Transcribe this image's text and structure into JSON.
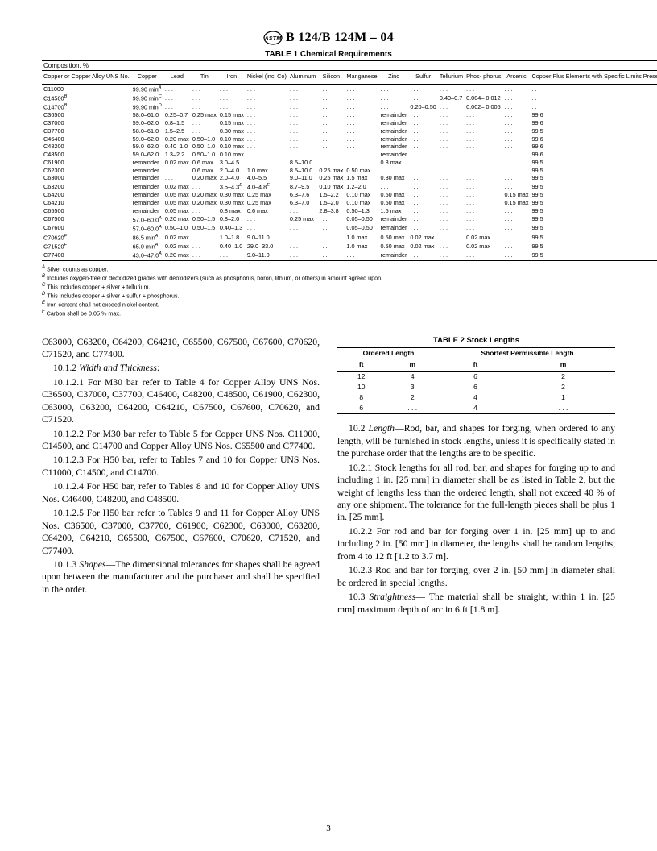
{
  "header": {
    "designation": "B 124/B 124M – 04"
  },
  "table1": {
    "title": "TABLE 1  Chemical Requirements",
    "composition_label": "Composition, %",
    "columns": [
      "Copper or Copper Alloy UNS No.",
      "Copper",
      "Lead",
      "Tin",
      "Iron",
      "Nickel (incl Co)",
      "Aluminum",
      "Silicon",
      "Manganese",
      "Zinc",
      "Sulfur",
      "Tellurium",
      "Phos- phorus",
      "Arsenic",
      "Copper Plus Elements with Specific Limits Present, min"
    ],
    "rows": [
      [
        "C11000",
        "99.90 min^A",
        ". . .",
        ". . .",
        ". . .",
        ". . .",
        ". . .",
        ". . .",
        ". . .",
        ". . .",
        ". . .",
        ". . .",
        ". . .",
        ". . .",
        ". . ."
      ],
      [
        "C14500^B",
        "99.90 min^C",
        ". . .",
        ". . .",
        ". . .",
        ". . .",
        ". . .",
        ". . .",
        ". . .",
        ". . .",
        ". . .",
        "0.40–0.7",
        "0.004– 0.012",
        ". . .",
        ". . ."
      ],
      [
        "C14700^B",
        "99.90 min^D",
        ". . .",
        ". . .",
        ". . .",
        ". . .",
        ". . .",
        ". . .",
        ". . .",
        ". . .",
        "0.20–0.50",
        ". . .",
        "0.002– 0.005",
        ". . .",
        ". . ."
      ],
      [
        "C36500",
        "58.0–61.0",
        "0.25–0.7",
        "0.25 max",
        "0.15 max",
        ". . .",
        ". . .",
        ". . .",
        ". . .",
        "remainder",
        ". . .",
        ". . .",
        ". . .",
        ". . .",
        "99.6"
      ],
      [
        "C37000",
        "59.0–62.0",
        "0.8–1.5",
        ". . .",
        "0.15 max",
        ". . .",
        ". . .",
        ". . .",
        ". . .",
        "remainder",
        ". . .",
        ". . .",
        ". . .",
        ". . .",
        "99.6"
      ],
      [
        "C37700",
        "58.0–61.0",
        "1.5–2.5",
        ". . .",
        "0.30 max",
        ". . .",
        ". . .",
        ". . .",
        ". . .",
        "remainder",
        ". . .",
        ". . .",
        ". . .",
        ". . .",
        "99.5"
      ],
      [
        "C46400",
        "59.0–62.0",
        "0.20 max",
        "0.50–1.0",
        "0.10 max",
        ". . .",
        ". . .",
        ". . .",
        ". . .",
        "remainder",
        ". . .",
        ". . .",
        ". . .",
        ". . .",
        "99.6"
      ],
      [
        "C48200",
        "59.0–62.0",
        "0.40–1.0",
        "0.50–1.0",
        "0.10 max",
        ". . .",
        ". . .",
        ". . .",
        ". . .",
        "remainder",
        ". . .",
        ". . .",
        ". . .",
        ". . .",
        "99.6"
      ],
      [
        "C48500",
        "59.0–62.0",
        "1.3–2.2",
        "0.50–1.0",
        "0.10 max",
        ". . .",
        ". . .",
        ". . .",
        ". . .",
        "remainder",
        ". . .",
        ". . .",
        ". . .",
        ". . .",
        "99.6"
      ],
      [
        "C61900",
        "remainder",
        "0.02 max",
        "0.6 max",
        "3.0–4.5",
        ". . .",
        "8.5–10.0",
        ". . .",
        ". . .",
        "0.8 max",
        ". . .",
        ". . .",
        ". . .",
        ". . .",
        "99.5"
      ],
      [
        "C62300",
        "remainder",
        ". . .",
        "0.6 max",
        "2.0–4.0",
        "1.0 max",
        "8.5–10.0",
        "0.25 max",
        "0.50 max",
        ". . .",
        ". . .",
        ". . .",
        ". . .",
        ". . .",
        "99.5"
      ],
      [
        "C63000",
        "remainder",
        ". . .",
        "0.20 max",
        "2.0–4.0",
        "4.0–5.5",
        "9.0–11.0",
        "0.25 max",
        "1.5 max",
        "0.30 max",
        ". . .",
        ". . .",
        ". . .",
        ". . .",
        "99.5"
      ],
      [
        "C63200",
        "remainder",
        "0.02 max",
        ". . .",
        "3.5–4.3^E",
        "4.0–4.8^E",
        "8.7–9.5",
        "0.10 max",
        "1.2–2.0",
        ". . .",
        ". . .",
        ". . .",
        ". . .",
        ". . .",
        "99.5"
      ],
      [
        "C64200",
        "remainder",
        "0.05 max",
        "0.20 max",
        "0.30 max",
        "0.25 max",
        "6.3–7.6",
        "1.5–2.2",
        "0.10 max",
        "0.50 max",
        ". . .",
        ". . .",
        ". . .",
        "0.15 max",
        "99.5"
      ],
      [
        "C64210",
        "remainder",
        "0.05 max",
        "0.20 max",
        "0.30 max",
        "0.25 max",
        "6.3–7.0",
        "1.5–2.0",
        "0.10 max",
        "0.50 max",
        ". . .",
        ". . .",
        ". . .",
        "0.15 max",
        "99.5"
      ],
      [
        "C65500",
        "remainder",
        "0.05 max",
        ". . .",
        "0.8 max",
        "0.6 max",
        ". . .",
        "2.8–3.8",
        "0.50–1.3",
        "1.5 max",
        ". . .",
        ". . .",
        ". . .",
        ". . .",
        "99.5"
      ],
      [
        "C67500",
        "57.0–60.0^A",
        "0.20 max",
        "0.50–1.5",
        "0.8–2.0",
        ". . .",
        "0.25 max",
        ". . .",
        "0.05–0.50",
        "remainder",
        ". . .",
        ". . .",
        ". . .",
        ". . .",
        "99.5"
      ],
      [
        "C67600",
        "57.0–60.0^A",
        "0.50–1.0",
        "0.50–1.5",
        "0.40–1.3",
        ". . .",
        ". . .",
        ". . .",
        "0.05–0.50",
        "remainder",
        ". . .",
        ". . .",
        ". . .",
        ". . .",
        "99.5"
      ],
      [
        "C70620^F",
        "86.5 min^A",
        "0.02 max",
        ". . .",
        "1.0–1.8",
        "9.0–11.0",
        ". . .",
        ". . .",
        "1.0 max",
        "0.50 max",
        "0.02 max",
        ". . .",
        "0.02 max",
        ". . .",
        "99.5"
      ],
      [
        "C71520^F",
        "65.0 min^A",
        "0.02 max",
        ". . .",
        "0.40–1.0",
        "29.0–33.0",
        ". . .",
        ". . .",
        "1.0 max",
        "0.50 max",
        "0.02 max",
        ". . .",
        "0.02 max",
        ". . .",
        "99.5"
      ],
      [
        "C77400",
        "43.0–47.0^A",
        "0.20 max",
        ". . .",
        ". . .",
        "9.0–11.0",
        ". . .",
        ". . .",
        ". . .",
        "remainder",
        ". . .",
        ". . .",
        ". . .",
        ". . .",
        "99.5"
      ]
    ],
    "footnotes": [
      "^A Silver counts as copper.",
      "^B Includes oxygen-free or deoxidized grades with deoxidizers (such as phosphorus, boron, lithium, or others) in amount agreed upon.",
      "^C This includes copper + silver + tellurium.",
      "^D This includes copper + silver + sulfur + phosphorus.",
      "^E Iron content shall not exceed nickel content.",
      "^F Carbon shall be 0.05 % max."
    ]
  },
  "left_column": {
    "p1": "C63000, C63200, C64200, C64210, C65500, C67500, C67600, C70620, C71520, and C77400.",
    "p2_head": "10.1.2 ",
    "p2_ital": "Width and Thickness",
    "p3": "10.1.2.1  For M30 bar refer to Table 4 for Copper Alloy UNS Nos. C36500, C37000, C37700, C46400, C48200, C48500, C61900, C62300, C63000, C63200, C64200, C64210, C67500, C67600, C70620, and C71520.",
    "p4": "10.1.2.2  For M30 bar refer to Table 5 for Copper UNS Nos. C11000, C14500, and C14700 and Copper Alloy UNS Nos. C65500 and C77400.",
    "p5": "10.1.2.3  For H50 bar, refer to Tables 7 and 10 for Copper UNS Nos. C11000, C14500, and C14700.",
    "p6": "10.1.2.4  For H50 bar, refer to Tables 8 and 10 for Copper Alloy UNS Nos. C46400, C48200, and C48500.",
    "p7": "10.1.2.5  For H50 bar refer to Tables 9 and 11 for Copper Alloy UNS Nos. C36500, C37000, C37700, C61900, C62300, C63000, C63200, C64200, C64210, C65500, C67500, C67600, C70620, C71520, and C77400.",
    "p8_head": "10.1.3 ",
    "p8_ital": "Shapes",
    "p8_rest": "—The dimensional tolerances for shapes shall be agreed upon between the manufacturer and the purchaser and shall be specified in the order."
  },
  "table2": {
    "title": "TABLE 2  Stock Lengths",
    "col_groups": [
      "Ordered Length",
      "Shortest Permissible Length"
    ],
    "sub_cols": [
      "ft",
      "m",
      "ft",
      "m"
    ],
    "rows": [
      [
        "12",
        "4",
        "6",
        "2"
      ],
      [
        "10",
        "3",
        "6",
        "2"
      ],
      [
        "8",
        "2",
        "4",
        "1"
      ],
      [
        "6",
        ". . .",
        "4",
        ". . ."
      ]
    ]
  },
  "right_column": {
    "p1_head": "10.2 ",
    "p1_ital": "Length",
    "p1_rest": "—Rod, bar, and shapes for forging, when ordered to any length, will be furnished in stock lengths, unless it is specifically stated in the purchase order that the lengths are to be specific.",
    "p2": "10.2.1  Stock lengths for all rod, bar, and shapes for forging up to and including 1 in. [25 mm] in diameter shall be as listed in Table 2, but the weight of lengths less than the ordered length, shall not exceed 40 % of any one shipment. The tolerance for the full-length pieces shall be plus 1 in. [25 mm].",
    "p3": "10.2.2  For rod and bar for forging over 1 in. [25 mm] up to and including 2 in. [50 mm] in diameter, the lengths shall be random lengths, from 4 to 12 ft [1.2 to 3.7 m].",
    "p4": "10.2.3  Rod and bar for forging, over 2 in. [50 mm] in diameter shall be ordered in special lengths.",
    "p5_head": "10.3 ",
    "p5_ital": "Straightness",
    "p5_rest": "— The material shall be straight, within 1 in. [25 mm] maximum depth of arc in 6 ft [1.8 m]."
  },
  "page_number": "3"
}
